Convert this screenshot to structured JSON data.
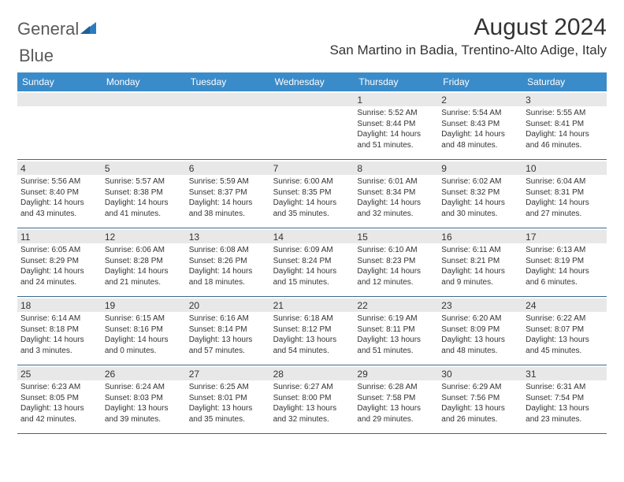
{
  "brand": {
    "word1": "General",
    "word2": "Blue"
  },
  "title": "August 2024",
  "location": "San Martino in Badia, Trentino-Alto Adige, Italy",
  "colors": {
    "header_bg": "#3a8bc9",
    "border": "#3a6a8f",
    "daybg": "#e8e8e8",
    "text": "#333333",
    "logo_gray": "#5a5a5a",
    "logo_blue": "#2a7bbf"
  },
  "dayNames": [
    "Sunday",
    "Monday",
    "Tuesday",
    "Wednesday",
    "Thursday",
    "Friday",
    "Saturday"
  ],
  "weeks": [
    [
      {
        "n": "",
        "sr": "",
        "ss": "",
        "dl": ""
      },
      {
        "n": "",
        "sr": "",
        "ss": "",
        "dl": ""
      },
      {
        "n": "",
        "sr": "",
        "ss": "",
        "dl": ""
      },
      {
        "n": "",
        "sr": "",
        "ss": "",
        "dl": ""
      },
      {
        "n": "1",
        "sr": "Sunrise: 5:52 AM",
        "ss": "Sunset: 8:44 PM",
        "dl": "Daylight: 14 hours and 51 minutes."
      },
      {
        "n": "2",
        "sr": "Sunrise: 5:54 AM",
        "ss": "Sunset: 8:43 PM",
        "dl": "Daylight: 14 hours and 48 minutes."
      },
      {
        "n": "3",
        "sr": "Sunrise: 5:55 AM",
        "ss": "Sunset: 8:41 PM",
        "dl": "Daylight: 14 hours and 46 minutes."
      }
    ],
    [
      {
        "n": "4",
        "sr": "Sunrise: 5:56 AM",
        "ss": "Sunset: 8:40 PM",
        "dl": "Daylight: 14 hours and 43 minutes."
      },
      {
        "n": "5",
        "sr": "Sunrise: 5:57 AM",
        "ss": "Sunset: 8:38 PM",
        "dl": "Daylight: 14 hours and 41 minutes."
      },
      {
        "n": "6",
        "sr": "Sunrise: 5:59 AM",
        "ss": "Sunset: 8:37 PM",
        "dl": "Daylight: 14 hours and 38 minutes."
      },
      {
        "n": "7",
        "sr": "Sunrise: 6:00 AM",
        "ss": "Sunset: 8:35 PM",
        "dl": "Daylight: 14 hours and 35 minutes."
      },
      {
        "n": "8",
        "sr": "Sunrise: 6:01 AM",
        "ss": "Sunset: 8:34 PM",
        "dl": "Daylight: 14 hours and 32 minutes."
      },
      {
        "n": "9",
        "sr": "Sunrise: 6:02 AM",
        "ss": "Sunset: 8:32 PM",
        "dl": "Daylight: 14 hours and 30 minutes."
      },
      {
        "n": "10",
        "sr": "Sunrise: 6:04 AM",
        "ss": "Sunset: 8:31 PM",
        "dl": "Daylight: 14 hours and 27 minutes."
      }
    ],
    [
      {
        "n": "11",
        "sr": "Sunrise: 6:05 AM",
        "ss": "Sunset: 8:29 PM",
        "dl": "Daylight: 14 hours and 24 minutes."
      },
      {
        "n": "12",
        "sr": "Sunrise: 6:06 AM",
        "ss": "Sunset: 8:28 PM",
        "dl": "Daylight: 14 hours and 21 minutes."
      },
      {
        "n": "13",
        "sr": "Sunrise: 6:08 AM",
        "ss": "Sunset: 8:26 PM",
        "dl": "Daylight: 14 hours and 18 minutes."
      },
      {
        "n": "14",
        "sr": "Sunrise: 6:09 AM",
        "ss": "Sunset: 8:24 PM",
        "dl": "Daylight: 14 hours and 15 minutes."
      },
      {
        "n": "15",
        "sr": "Sunrise: 6:10 AM",
        "ss": "Sunset: 8:23 PM",
        "dl": "Daylight: 14 hours and 12 minutes."
      },
      {
        "n": "16",
        "sr": "Sunrise: 6:11 AM",
        "ss": "Sunset: 8:21 PM",
        "dl": "Daylight: 14 hours and 9 minutes."
      },
      {
        "n": "17",
        "sr": "Sunrise: 6:13 AM",
        "ss": "Sunset: 8:19 PM",
        "dl": "Daylight: 14 hours and 6 minutes."
      }
    ],
    [
      {
        "n": "18",
        "sr": "Sunrise: 6:14 AM",
        "ss": "Sunset: 8:18 PM",
        "dl": "Daylight: 14 hours and 3 minutes."
      },
      {
        "n": "19",
        "sr": "Sunrise: 6:15 AM",
        "ss": "Sunset: 8:16 PM",
        "dl": "Daylight: 14 hours and 0 minutes."
      },
      {
        "n": "20",
        "sr": "Sunrise: 6:16 AM",
        "ss": "Sunset: 8:14 PM",
        "dl": "Daylight: 13 hours and 57 minutes."
      },
      {
        "n": "21",
        "sr": "Sunrise: 6:18 AM",
        "ss": "Sunset: 8:12 PM",
        "dl": "Daylight: 13 hours and 54 minutes."
      },
      {
        "n": "22",
        "sr": "Sunrise: 6:19 AM",
        "ss": "Sunset: 8:11 PM",
        "dl": "Daylight: 13 hours and 51 minutes."
      },
      {
        "n": "23",
        "sr": "Sunrise: 6:20 AM",
        "ss": "Sunset: 8:09 PM",
        "dl": "Daylight: 13 hours and 48 minutes."
      },
      {
        "n": "24",
        "sr": "Sunrise: 6:22 AM",
        "ss": "Sunset: 8:07 PM",
        "dl": "Daylight: 13 hours and 45 minutes."
      }
    ],
    [
      {
        "n": "25",
        "sr": "Sunrise: 6:23 AM",
        "ss": "Sunset: 8:05 PM",
        "dl": "Daylight: 13 hours and 42 minutes."
      },
      {
        "n": "26",
        "sr": "Sunrise: 6:24 AM",
        "ss": "Sunset: 8:03 PM",
        "dl": "Daylight: 13 hours and 39 minutes."
      },
      {
        "n": "27",
        "sr": "Sunrise: 6:25 AM",
        "ss": "Sunset: 8:01 PM",
        "dl": "Daylight: 13 hours and 35 minutes."
      },
      {
        "n": "28",
        "sr": "Sunrise: 6:27 AM",
        "ss": "Sunset: 8:00 PM",
        "dl": "Daylight: 13 hours and 32 minutes."
      },
      {
        "n": "29",
        "sr": "Sunrise: 6:28 AM",
        "ss": "Sunset: 7:58 PM",
        "dl": "Daylight: 13 hours and 29 minutes."
      },
      {
        "n": "30",
        "sr": "Sunrise: 6:29 AM",
        "ss": "Sunset: 7:56 PM",
        "dl": "Daylight: 13 hours and 26 minutes."
      },
      {
        "n": "31",
        "sr": "Sunrise: 6:31 AM",
        "ss": "Sunset: 7:54 PM",
        "dl": "Daylight: 13 hours and 23 minutes."
      }
    ]
  ]
}
